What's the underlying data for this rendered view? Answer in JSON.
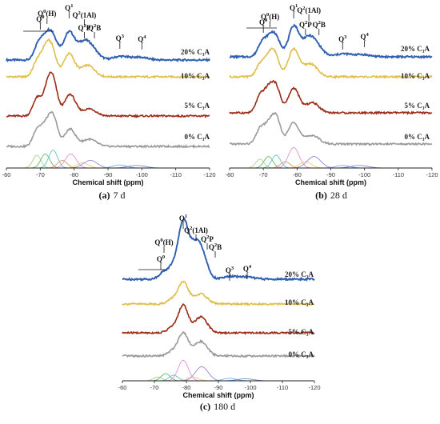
{
  "chart_data": [
    {
      "panel": "a",
      "type": "line",
      "caption_letter": "(a)",
      "caption_text": "7 d",
      "xlabel": "Chemical shift (ppm)",
      "xlim": [
        -60,
        -120
      ],
      "xticks": [
        -60,
        -70,
        -80,
        -90,
        -100,
        -110,
        -120
      ],
      "series": [
        {
          "name": "20% C₃A",
          "color": "#2e5fb0",
          "peaks": [
            [
              -69.5,
              0.55,
              1.2
            ],
            [
              -72.0,
              0.75,
              1.4
            ],
            [
              -74.0,
              0.6,
              1.4
            ],
            [
              -78.5,
              0.95,
              1.6
            ],
            [
              -82.5,
              0.45,
              1.8
            ],
            [
              -85.0,
              0.4,
              2.0
            ],
            [
              -93.5,
              0.12,
              2.0
            ],
            [
              -99.0,
              0.1,
              2.5
            ]
          ]
        },
        {
          "name": "10% C₃A",
          "color": "#e0bd4a",
          "peaks": [
            [
              -69.0,
              0.5,
              1.2
            ],
            [
              -71.5,
              0.85,
              1.3
            ],
            [
              -73.5,
              0.85,
              1.3
            ],
            [
              -78.5,
              0.8,
              1.6
            ],
            [
              -84.0,
              0.4,
              2.0
            ]
          ]
        },
        {
          "name": "5% C₃A",
          "color": "#9c2a14",
          "peaks": [
            [
              -69.0,
              0.6,
              1.2
            ],
            [
              -72.0,
              0.8,
              1.3
            ],
            [
              -73.8,
              1.1,
              1.3
            ],
            [
              -78.8,
              0.75,
              1.6
            ],
            [
              -84.5,
              0.25,
              2.0
            ]
          ]
        },
        {
          "name": "0% C₃A",
          "color": "#9a9a9a",
          "peaks": [
            [
              -69.0,
              0.55,
              1.2
            ],
            [
              -71.5,
              0.65,
              1.3
            ],
            [
              -73.8,
              1.0,
              1.3
            ],
            [
              -78.8,
              0.6,
              1.6
            ],
            [
              -84.5,
              0.25,
              2.0
            ]
          ]
        }
      ],
      "labels": [
        "20% C3A",
        "10% C3A",
        "5% C3A",
        "0% C3A"
      ],
      "annotations": [
        "Q0(H)",
        "Q0",
        "Q1",
        "Q2(1Al)",
        "Q2P",
        "Q2B",
        "Q3",
        "Q4"
      ]
    },
    {
      "panel": "b",
      "type": "line",
      "caption_letter": "(b)",
      "caption_text": "28 d",
      "xlabel": "Chemical shift (ppm)",
      "xlim": [
        -60,
        -120
      ],
      "xticks": [
        -60,
        -70,
        -80,
        -90,
        -100,
        -110,
        -120
      ],
      "series": [
        {
          "name": "20% C₃A",
          "color": "#2e5fb0",
          "peaks": [
            [
              -69.5,
              0.45,
              1.2
            ],
            [
              -72.0,
              0.6,
              1.4
            ],
            [
              -74.0,
              0.5,
              1.4
            ],
            [
              -79.0,
              1.05,
              1.5
            ],
            [
              -83.0,
              0.5,
              1.8
            ],
            [
              -85.5,
              0.4,
              2.0
            ],
            [
              -93.5,
              0.1,
              2.0
            ],
            [
              -99.0,
              0.08,
              2.5
            ]
          ]
        },
        {
          "name": "10% C₃A",
          "color": "#e0bd4a",
          "peaks": [
            [
              -69.0,
              0.4,
              1.2
            ],
            [
              -71.5,
              0.6,
              1.3
            ],
            [
              -73.5,
              0.7,
              1.3
            ],
            [
              -79.0,
              0.95,
              1.6
            ],
            [
              -84.0,
              0.45,
              2.0
            ]
          ]
        },
        {
          "name": "5% C₃A",
          "color": "#9c2a14",
          "peaks": [
            [
              -69.0,
              0.55,
              1.2
            ],
            [
              -71.5,
              0.75,
              1.3
            ],
            [
              -73.8,
              0.85,
              1.3
            ],
            [
              -79.0,
              0.85,
              1.6
            ],
            [
              -84.5,
              0.35,
              2.0
            ]
          ]
        },
        {
          "name": "0% C₃A",
          "color": "#9a9a9a",
          "peaks": [
            [
              -69.0,
              0.5,
              1.2
            ],
            [
              -71.5,
              0.6,
              1.3
            ],
            [
              -73.8,
              0.9,
              1.3
            ],
            [
              -79.0,
              0.75,
              1.6
            ],
            [
              -84.5,
              0.3,
              2.0
            ]
          ]
        }
      ],
      "labels": [
        "20% C3A",
        "10% C3A",
        "5% C3A",
        "0% C3A"
      ],
      "annotations": [
        "Q0(H)",
        "Q0",
        "Q1",
        "Q2(1Al)",
        "Q2P",
        "Q2B",
        "Q3",
        "Q4"
      ]
    },
    {
      "panel": "c",
      "type": "line",
      "caption_letter": "(c)",
      "caption_text": "180 d",
      "xlabel": "Chemical shift (ppm)",
      "xlim": [
        -60,
        -120
      ],
      "xticks": [
        -60,
        -70,
        -80,
        -90,
        -100,
        -110,
        -120
      ],
      "series": [
        {
          "name": "20% C₃A",
          "color": "#2e5fb0",
          "peaks": [
            [
              -73.0,
              0.15,
              1.5
            ],
            [
              -76.0,
              0.25,
              1.4
            ],
            [
              -79.0,
              1.15,
              1.5
            ],
            [
              -82.0,
              0.45,
              1.6
            ],
            [
              -84.5,
              0.6,
              1.8
            ],
            [
              -93.5,
              0.05,
              2.0
            ],
            [
              -98.5,
              0.05,
              2.5
            ]
          ]
        },
        {
          "name": "10% C₃A",
          "color": "#e0bd4a",
          "peaks": [
            [
              -75.5,
              0.15,
              1.5
            ],
            [
              -79.0,
              0.75,
              1.6
            ],
            [
              -84.5,
              0.35,
              2.0
            ]
          ]
        },
        {
          "name": "5% C₃A",
          "color": "#9c2a14",
          "peaks": [
            [
              -75.5,
              0.18,
              1.5
            ],
            [
              -79.0,
              0.95,
              1.5
            ],
            [
              -84.5,
              0.55,
              2.0
            ]
          ]
        },
        {
          "name": "0% C₃A",
          "color": "#9a9a9a",
          "peaks": [
            [
              -75.5,
              0.15,
              1.5
            ],
            [
              -79.0,
              0.8,
              1.6
            ],
            [
              -84.5,
              0.5,
              2.0
            ]
          ]
        }
      ],
      "labels": [
        "20% C3A",
        "10% C3A",
        "5% C3A",
        "0% C3A"
      ],
      "annotations": [
        "Q0(H)",
        "Q0",
        "Q1",
        "Q2(1Al)",
        "Q2P",
        "Q2B",
        "Q3",
        "Q4"
      ]
    }
  ],
  "deconvolution": [
    {
      "panel": "a",
      "components": [
        {
          "center": -69.0,
          "height": 0.5,
          "width": 1.2,
          "color": "#a6d57f"
        },
        {
          "center": -71.5,
          "height": 0.55,
          "width": 1.3,
          "color": "#6bb36b"
        },
        {
          "center": -73.8,
          "height": 0.7,
          "width": 1.3,
          "color": "#5ac7c7"
        },
        {
          "center": -76.5,
          "height": 0.3,
          "width": 1.4,
          "color": "#d7a06a"
        },
        {
          "center": -79.0,
          "height": 0.55,
          "width": 1.6,
          "color": "#e58fd1"
        },
        {
          "center": -82.5,
          "height": 0.2,
          "width": 1.7,
          "color": "#e9cf70"
        },
        {
          "center": -84.8,
          "height": 0.3,
          "width": 2.0,
          "color": "#9d86d7"
        },
        {
          "center": -93.5,
          "height": 0.12,
          "width": 2.0,
          "color": "#6fb3e0"
        },
        {
          "center": -98.5,
          "height": 0.1,
          "width": 2.5,
          "color": "#7a8ed6"
        }
      ]
    },
    {
      "panel": "b",
      "components": [
        {
          "center": -69.0,
          "height": 0.35,
          "width": 1.2,
          "color": "#a6d57f"
        },
        {
          "center": -71.5,
          "height": 0.45,
          "width": 1.3,
          "color": "#6bb36b"
        },
        {
          "center": -73.8,
          "height": 0.5,
          "width": 1.3,
          "color": "#5ac7c7"
        },
        {
          "center": -76.5,
          "height": 0.25,
          "width": 1.4,
          "color": "#d7a06a"
        },
        {
          "center": -79.0,
          "height": 0.8,
          "width": 1.6,
          "color": "#e58fd1"
        },
        {
          "center": -82.5,
          "height": 0.25,
          "width": 1.7,
          "color": "#e9cf70"
        },
        {
          "center": -85.0,
          "height": 0.45,
          "width": 2.0,
          "color": "#9d86d7"
        },
        {
          "center": -93.5,
          "height": 0.1,
          "width": 2.0,
          "color": "#6fb3e0"
        },
        {
          "center": -98.5,
          "height": 0.1,
          "width": 2.5,
          "color": "#7a8ed6"
        }
      ]
    },
    {
      "panel": "c",
      "components": [
        {
          "center": -71.0,
          "height": 0.15,
          "width": 1.3,
          "color": "#a6d57f"
        },
        {
          "center": -73.5,
          "height": 0.28,
          "width": 1.4,
          "color": "#6bb36b"
        },
        {
          "center": -76.0,
          "height": 0.22,
          "width": 1.4,
          "color": "#5ac7c7"
        },
        {
          "center": -79.0,
          "height": 0.8,
          "width": 1.6,
          "color": "#e58fd1"
        },
        {
          "center": -82.0,
          "height": 0.15,
          "width": 1.7,
          "color": "#e9cf70"
        },
        {
          "center": -84.8,
          "height": 0.55,
          "width": 2.0,
          "color": "#9d86d7"
        },
        {
          "center": -93.5,
          "height": 0.1,
          "width": 2.0,
          "color": "#6fb3e0"
        },
        {
          "center": -98.5,
          "height": 0.08,
          "width": 2.5,
          "color": "#7a8ed6"
        }
      ]
    }
  ]
}
